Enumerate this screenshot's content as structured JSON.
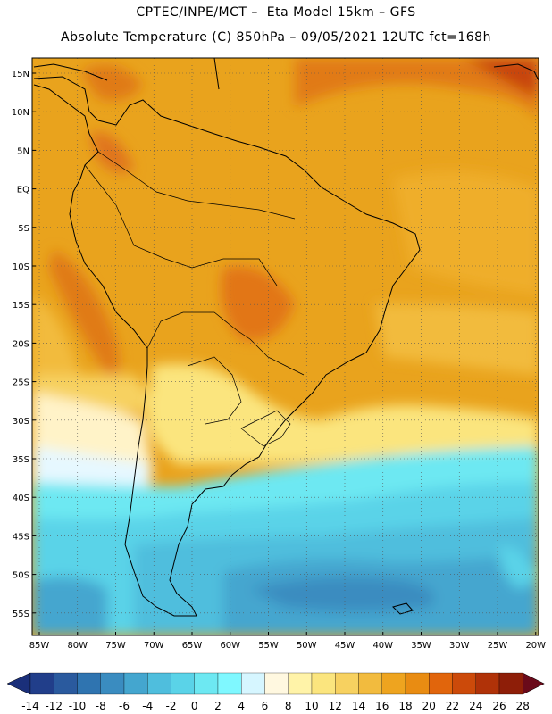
{
  "title_line1": "CPTEC/INPE/MCT –  Eta Model 15km – GFS",
  "title_line2": "Absolute Temperature (C) 850hPa – 09/05/2021 12UTC fct=168h",
  "lat_labels": [
    "15N",
    "10N",
    "5N",
    "EQ",
    "5S",
    "10S",
    "15S",
    "20S",
    "25S",
    "30S",
    "35S",
    "40S",
    "45S",
    "50S",
    "55S"
  ],
  "lon_labels": [
    "85W",
    "80W",
    "75W",
    "70W",
    "65W",
    "60W",
    "55W",
    "50W",
    "45W",
    "40W",
    "35W",
    "30W",
    "25W",
    "20W"
  ],
  "colorbar": {
    "labels": [
      "-14",
      "-12",
      "-10",
      "-8",
      "-6",
      "-4",
      "-2",
      "0",
      "2",
      "4",
      "6",
      "8",
      "10",
      "12",
      "14",
      "16",
      "18",
      "20",
      "22",
      "24",
      "26",
      "28"
    ],
    "under_color": "#1a2f7a",
    "over_color": "#6a0a1a",
    "colors": [
      "#213e8a",
      "#2a5a9e",
      "#2f74b0",
      "#3a8cc0",
      "#44a6cf",
      "#4fbedd",
      "#5ad3e8",
      "#6de8f2",
      "#7ff8ff",
      "#d6f6ff",
      "#fff8e0",
      "#fff3a8",
      "#fbe57e",
      "#f7d160",
      "#f2bb3e",
      "#eea41f",
      "#e98c12",
      "#e1650c",
      "#cc4a0a",
      "#b03208",
      "#8e1e08"
    ]
  },
  "map": {
    "land_color": "#e7a23a",
    "coast_color": "#000000"
  }
}
